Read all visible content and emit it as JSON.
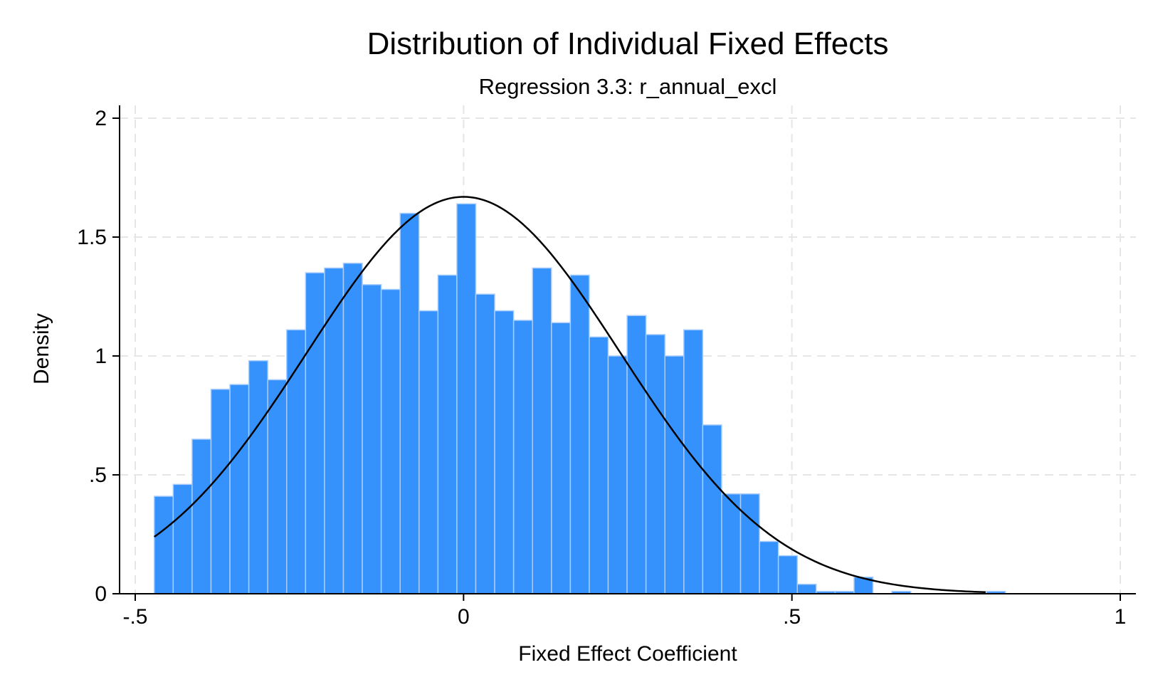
{
  "chart_data": {
    "type": "bar",
    "subtype": "histogram",
    "title": "Distribution of Individual Fixed Effects",
    "subtitle": "Regression 3.3: r_annual_excl",
    "xlabel": "Fixed Effect Coefficient",
    "ylabel": "Density",
    "xlim": [
      -0.5,
      1.0
    ],
    "ylim": [
      0,
      2
    ],
    "xticks": [
      -0.5,
      0,
      0.5,
      1
    ],
    "xtick_labels": [
      "-.5",
      "0",
      ".5",
      "1"
    ],
    "yticks": [
      0,
      0.5,
      1,
      1.5,
      2
    ],
    "ytick_labels": [
      "0",
      ".5",
      "1",
      "1.5",
      "2"
    ],
    "grid": true,
    "legend": "none",
    "bar_color": "#3592fc",
    "bar_edge_color": "#a9cdfd",
    "line_color": "#000000",
    "bin_start": -0.471,
    "bin_width": 0.0288,
    "values": [
      0.41,
      0.46,
      0.65,
      0.86,
      0.88,
      0.98,
      0.9,
      1.11,
      1.35,
      1.37,
      1.39,
      1.3,
      1.28,
      1.6,
      1.19,
      1.34,
      1.64,
      1.26,
      1.19,
      1.15,
      1.37,
      1.14,
      1.34,
      1.08,
      1.0,
      1.17,
      1.09,
      1.0,
      1.11,
      0.71,
      0.42,
      0.42,
      0.22,
      0.16,
      0.04,
      0.01,
      0.01,
      0.07,
      0.0,
      0.01,
      0.0,
      0.0,
      0.0,
      0.0,
      0.01
    ],
    "normal_curve": {
      "mean": 0.0,
      "sd": 0.239,
      "x_range": [
        -0.471,
        0.795
      ]
    }
  }
}
